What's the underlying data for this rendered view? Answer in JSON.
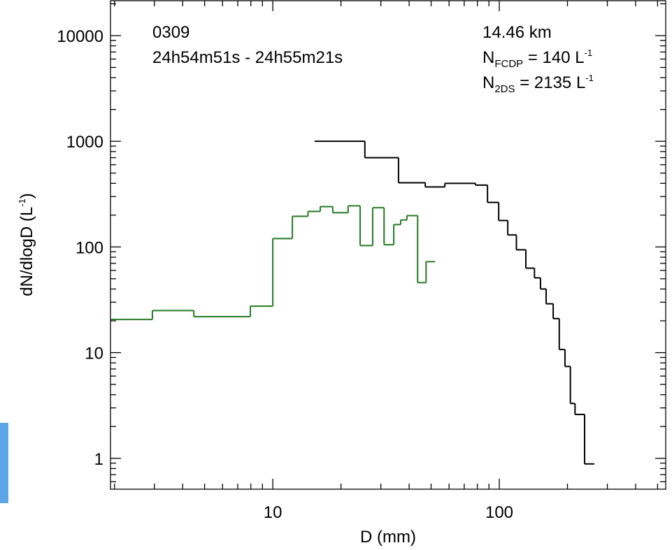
{
  "chart_data": {
    "type": "step",
    "annotations": {
      "case": "0309",
      "time": "24h54m51s - 24h55m21s",
      "altitude": "14.46 km",
      "fcdp": {
        "main": "N",
        "sub": "FCDP",
        "rest": " =   140 L",
        "sup": "-1"
      },
      "twods": {
        "main": "N",
        "sub": "2DS",
        "rest": " =  2135 L",
        "sup": "-1"
      }
    },
    "xlabel": "D (mm)",
    "ylabel": {
      "main": "dN/dlogD (L",
      "sup": "-1",
      "end": ")"
    },
    "xscale": "log",
    "yscale": "log",
    "xlim": [
      1.92,
      543
    ],
    "ylim": [
      0.51,
      21400
    ],
    "xticks": [
      10,
      100
    ],
    "yticks": [
      1,
      10,
      100,
      1000,
      10000
    ],
    "xminorticks": [
      2,
      3,
      4,
      5,
      6,
      7,
      8,
      9,
      20,
      30,
      40,
      50,
      60,
      70,
      80,
      90,
      200,
      300,
      400,
      500
    ],
    "yminorticks": [
      0.6,
      0.7,
      0.8,
      0.9,
      2,
      3,
      4,
      5,
      6,
      7,
      8,
      9,
      20,
      30,
      40,
      50,
      60,
      70,
      80,
      90,
      200,
      300,
      400,
      500,
      600,
      700,
      800,
      900,
      2000,
      3000,
      4000,
      5000,
      6000,
      7000,
      8000,
      9000,
      20000
    ],
    "series": [
      {
        "name": "FCDP",
        "color": "#237a23",
        "bins": [
          1.93,
          2.94,
          4.48,
          7.96,
          10,
          12.2,
          14.3,
          16.2,
          18.4,
          21.5,
          24.3,
          27.6,
          31,
          34.2,
          36.7,
          39.1,
          43.6,
          47.5,
          52
        ],
        "values": [
          20.6,
          25,
          21.9,
          27.5,
          120,
          195,
          217,
          241,
          211,
          245,
          103,
          235,
          105,
          163,
          180,
          198,
          46,
          72.6
        ]
      },
      {
        "name": "2DS",
        "color": "#000000",
        "bins": [
          15.3,
          25.5,
          35.9,
          47.1,
          57.5,
          78.5,
          88.7,
          99.4,
          109,
          119,
          131,
          143,
          152,
          161,
          173,
          184,
          195,
          206,
          216,
          238,
          263
        ],
        "values": [
          1000,
          700,
          405,
          370,
          400,
          385,
          264,
          178,
          130,
          94,
          63,
          51,
          40,
          29,
          21,
          10.7,
          7.4,
          3.3,
          2.6,
          0.885
        ]
      }
    ]
  }
}
